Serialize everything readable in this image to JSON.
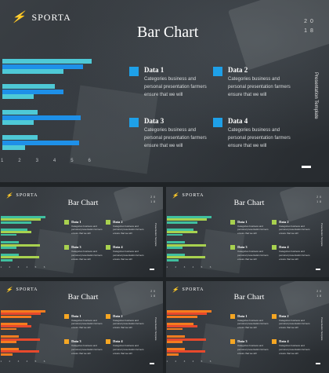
{
  "brand": "SPORTA",
  "title": "Bar Chart",
  "year": "2018",
  "side_text": "Presentation Template",
  "variants": [
    {
      "name": "blue",
      "colors": [
        "#4ec9d6",
        "#1e90e8"
      ],
      "accent": "#1ea0e8"
    },
    {
      "name": "green",
      "colors": [
        "#3fbf9f",
        "#a8d14f"
      ],
      "accent": "#a8d14f"
    },
    {
      "name": "orange",
      "colors": [
        "#f57c1f",
        "#e8492c"
      ],
      "accent": "#f5a623"
    }
  ],
  "items": [
    {
      "label": "Data 1",
      "desc": "Categories business and personal presentation farmers ensure that we will"
    },
    {
      "label": "Data 2",
      "desc": "Categories business and personal presentation farmers ensure that we will"
    },
    {
      "label": "Data 3",
      "desc": "Categories business and personal presentation farmers ensure that we will"
    },
    {
      "label": "Data 4",
      "desc": "Categories business and personal presentation farmers ensure that we will"
    }
  ],
  "chart_data": {
    "type": "bar",
    "orientation": "horizontal",
    "x_ticks": [
      "1",
      "2",
      "3",
      "4",
      "5",
      "6"
    ],
    "xlim": [
      0,
      6
    ],
    "series": [
      {
        "values": [
          5.1,
          3.0,
          2.0,
          2.0
        ]
      },
      {
        "values": [
          4.6,
          3.5,
          4.5,
          4.4
        ]
      },
      {
        "values": [
          3.5,
          1.8,
          1.8,
          1.3
        ]
      }
    ]
  }
}
